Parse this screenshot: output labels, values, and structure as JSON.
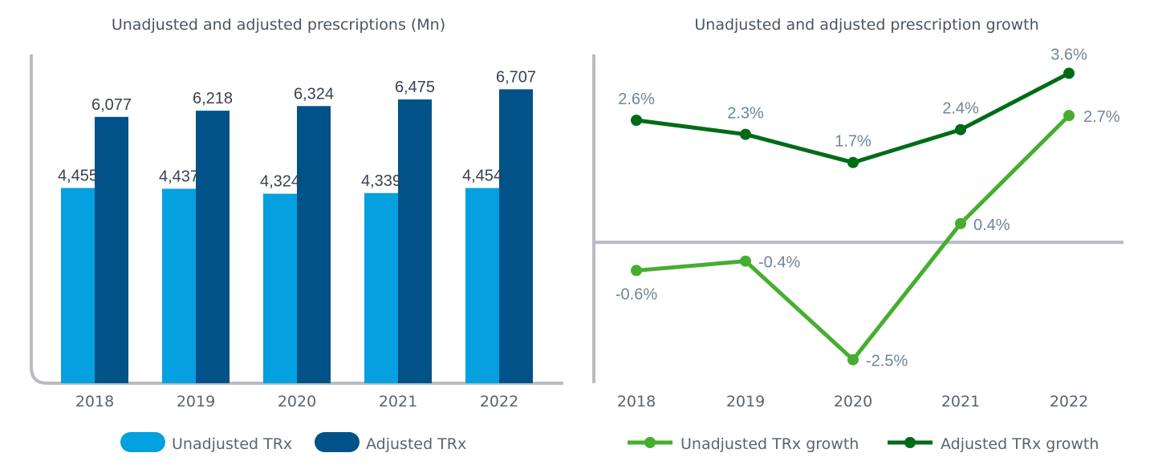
{
  "chart_data": [
    {
      "type": "bar",
      "title": "Unadjusted and adjusted prescriptions (Mn)",
      "categories": [
        "2018",
        "2019",
        "2020",
        "2021",
        "2022"
      ],
      "series": [
        {
          "name": "Unadjusted TRx",
          "color": "#05a0df",
          "values": [
            4455,
            4437,
            4324,
            4339,
            4454
          ],
          "labels": [
            "4,455",
            "4,437",
            "4,324",
            "4,339",
            "4,454"
          ]
        },
        {
          "name": "Adjusted TRx",
          "color": "#005289",
          "values": [
            6077,
            6218,
            6324,
            6475,
            6707
          ],
          "labels": [
            "6,077",
            "6,218",
            "6,324",
            "6,475",
            "6,707"
          ]
        }
      ],
      "ylim": [
        0,
        7500
      ],
      "grid": false,
      "legend": "bottom"
    },
    {
      "type": "line",
      "title": "Unadjusted and adjusted prescription growth",
      "categories": [
        "2018",
        "2019",
        "2020",
        "2021",
        "2022"
      ],
      "series": [
        {
          "name": "Unadjusted TRx growth",
          "color": "#46ae2f",
          "values": [
            -0.6,
            -0.4,
            -2.5,
            0.4,
            2.7
          ],
          "labels": [
            "-0.6%",
            "-0.4%",
            "-2.5%",
            "0.4%",
            "2.7%"
          ]
        },
        {
          "name": "Adjusted TRx growth",
          "color": "#006b17",
          "values": [
            2.6,
            2.3,
            1.7,
            2.4,
            3.6
          ],
          "labels": [
            "2.6%",
            "2.3%",
            "1.7%",
            "2.4%",
            "3.6%"
          ]
        }
      ],
      "ylim": [
        -3.0,
        4.0
      ],
      "grid": false,
      "legend": "bottom"
    }
  ]
}
